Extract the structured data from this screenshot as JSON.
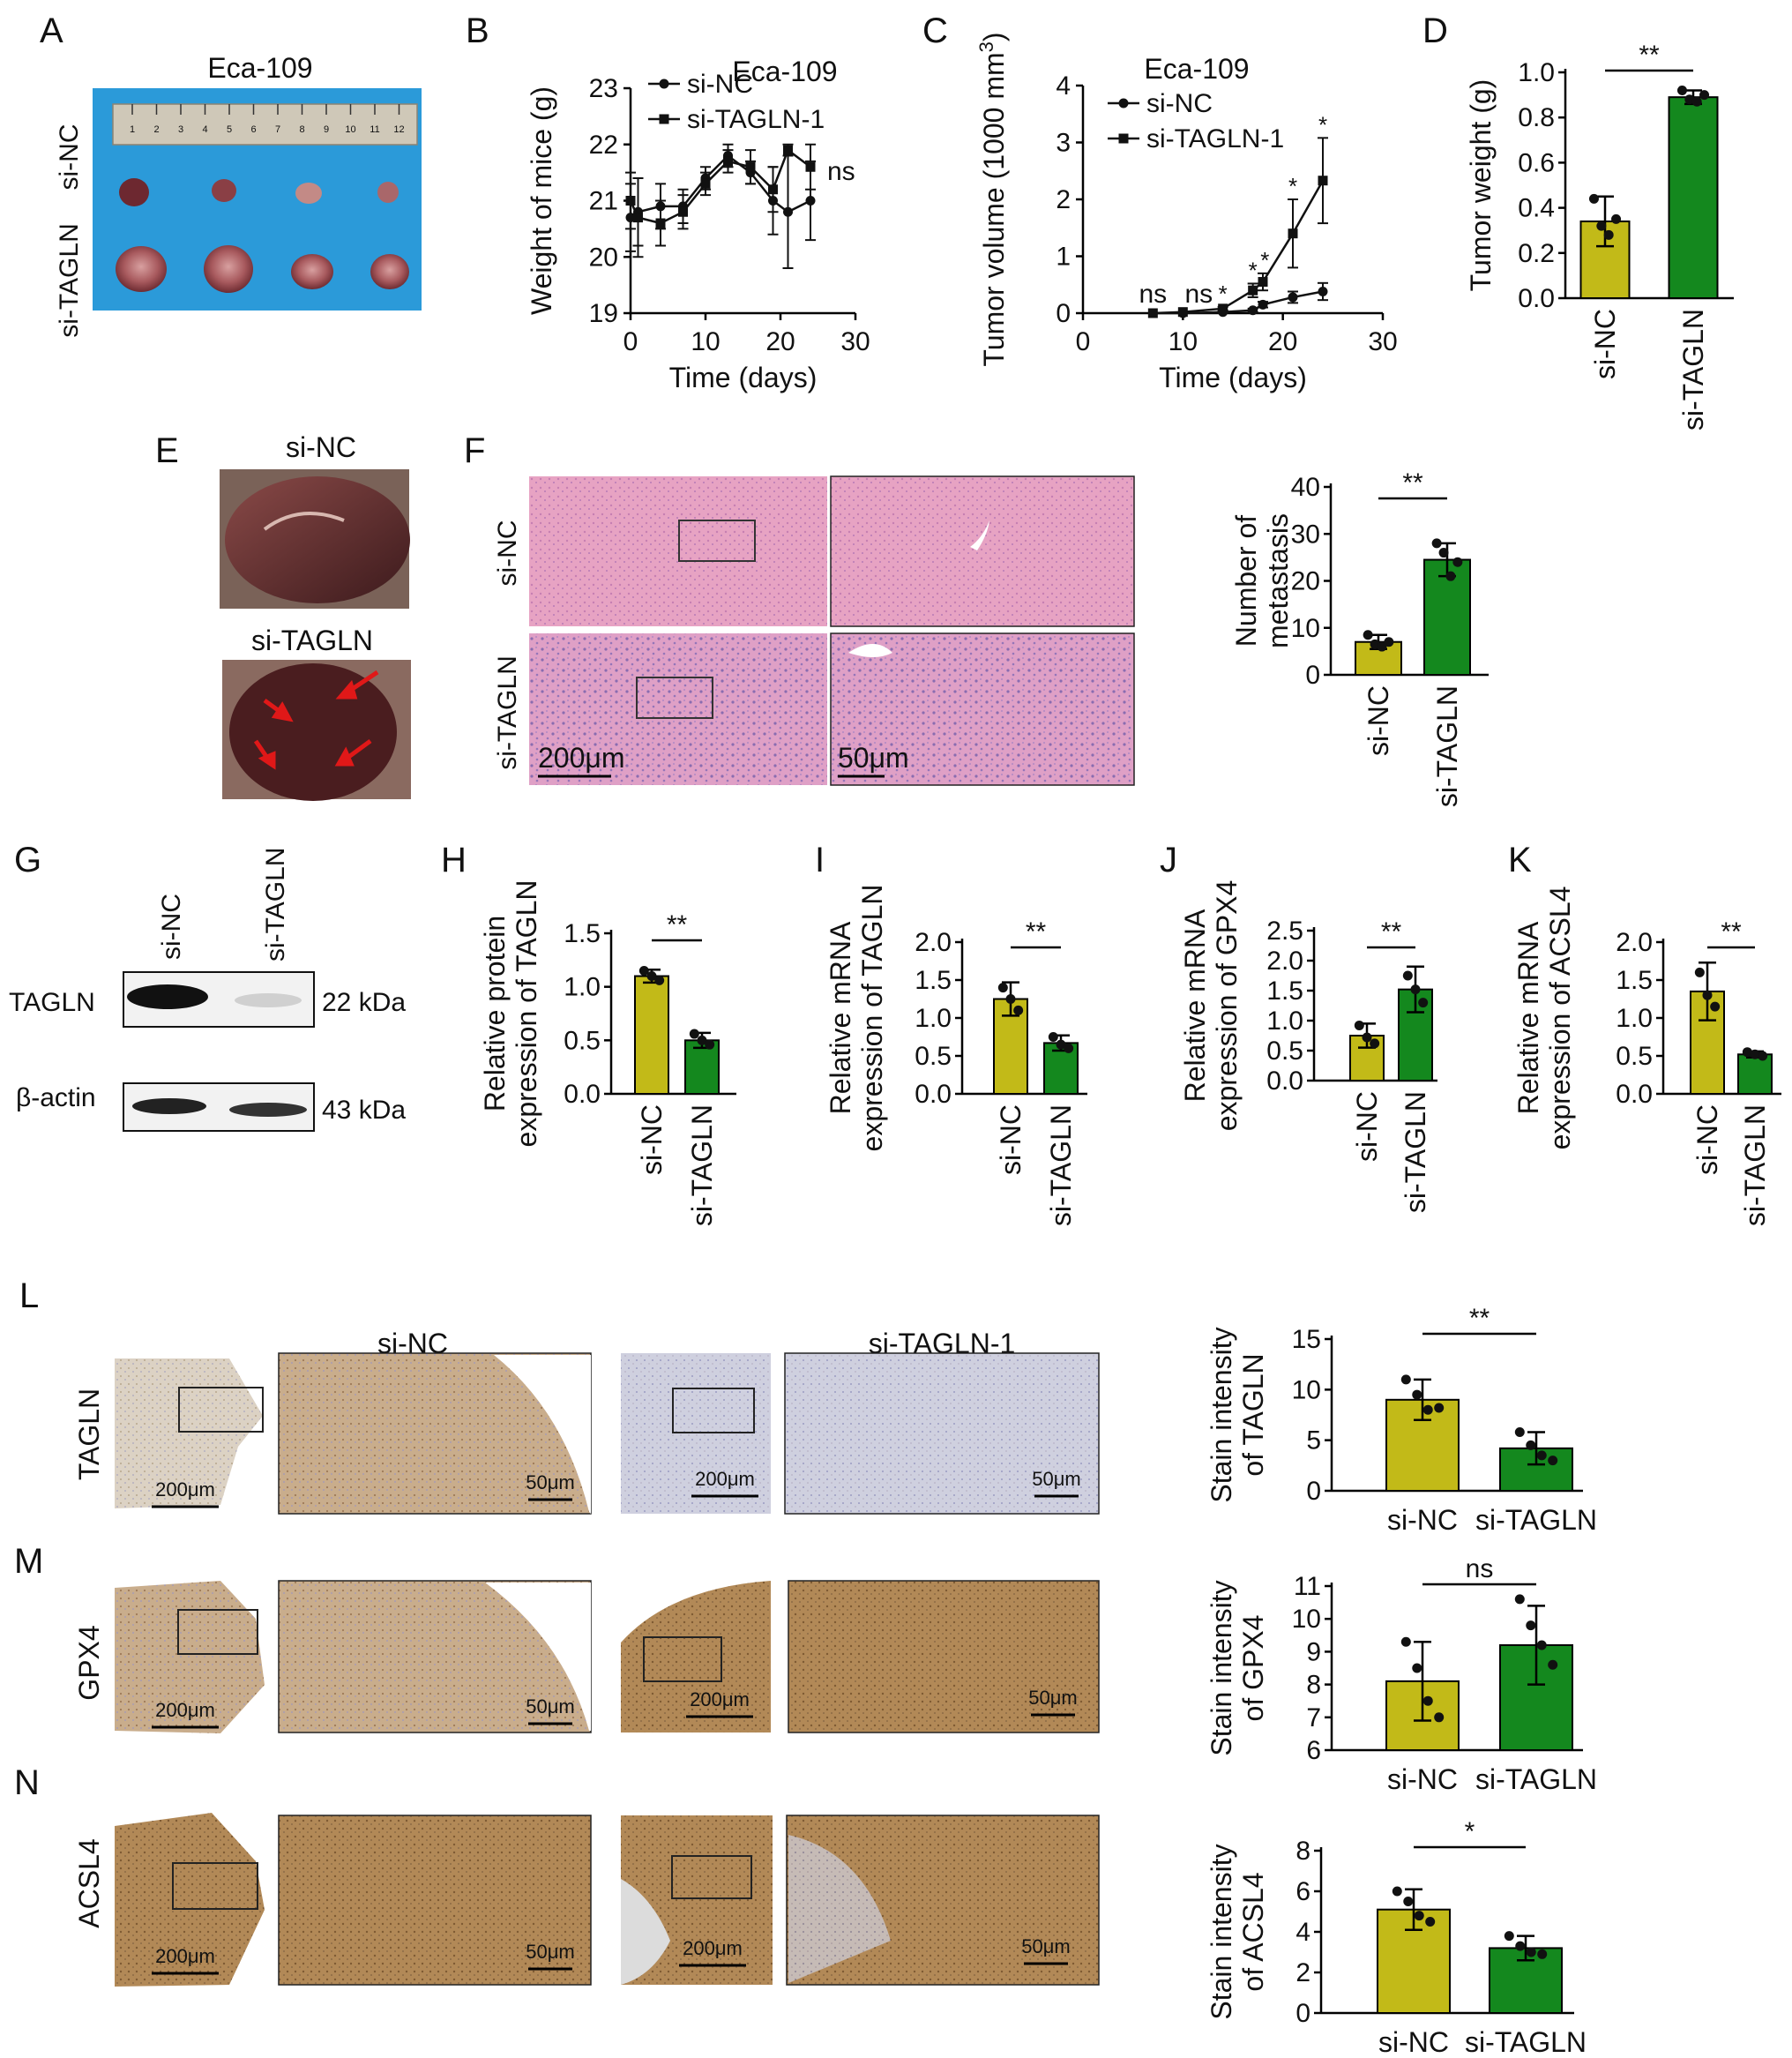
{
  "figure": {
    "panel_letters": [
      "A",
      "B",
      "C",
      "D",
      "E",
      "F",
      "G",
      "H",
      "I",
      "J",
      "K",
      "L",
      "M",
      "N"
    ]
  },
  "colors": {
    "nc": "#c2ba18",
    "kd": "#14881e",
    "axis": "#000000"
  },
  "panel_a": {
    "title": "Eca-109",
    "row_labels": [
      "si-NC",
      "si-TAGLN"
    ],
    "ruler_ticks": [
      "1",
      "2",
      "3",
      "4",
      "5",
      "6",
      "7",
      "8",
      "9",
      "10",
      "11",
      "12"
    ]
  },
  "panel_e": {
    "labels": [
      "si-NC",
      "si-TAGLN"
    ]
  },
  "panel_f": {
    "row_labels": [
      "si-NC",
      "si-TAGLN"
    ],
    "scale_left": "200μm",
    "scale_right": "50μm"
  },
  "panel_g": {
    "lanes": [
      "si-NC",
      "si-TAGLN"
    ],
    "rows": [
      {
        "label": "TAGLN",
        "size": "22 kDa"
      },
      {
        "label": "β-actin",
        "size": "43 kDa"
      }
    ]
  },
  "ihc": {
    "group_headers": [
      "si-NC",
      "si-TAGLN-1"
    ],
    "rows": [
      {
        "label": "TAGLN",
        "letter": "L"
      },
      {
        "label": "GPX4",
        "letter": "M"
      },
      {
        "label": "ACSL4",
        "letter": "N"
      }
    ],
    "scale_big": "200μm",
    "scale_small": "50μm"
  },
  "chart_data": [
    {
      "id": "B",
      "type": "line",
      "title": "Eca-109",
      "xlabel": "Time (days)",
      "ylabel": "Weight of mice (g)",
      "xlim": [
        0,
        30
      ],
      "ylim": [
        19,
        23
      ],
      "xticks": [
        0,
        10,
        20,
        30
      ],
      "yticks": [
        19,
        20,
        21,
        22,
        23
      ],
      "series": [
        {
          "name": "si-NC",
          "marker": "circle",
          "x": [
            0,
            1,
            4,
            7,
            10,
            13,
            16,
            19,
            21,
            24
          ],
          "y": [
            20.7,
            20.8,
            20.9,
            20.9,
            21.4,
            21.8,
            21.5,
            21.0,
            20.8,
            21.0
          ],
          "err": [
            0.6,
            0.6,
            0.4,
            0.3,
            0.2,
            0.2,
            0.2,
            0.6,
            1.0,
            0.7
          ]
        },
        {
          "name": "si-TAGLN-1",
          "marker": "square",
          "x": [
            0,
            1,
            4,
            7,
            10,
            13,
            16,
            19,
            21,
            24
          ],
          "y": [
            21.0,
            20.7,
            20.6,
            20.8,
            21.3,
            21.7,
            21.6,
            21.2,
            21.9,
            21.6
          ],
          "err": [
            0.5,
            0.7,
            0.4,
            0.3,
            0.2,
            0.2,
            0.3,
            0.4,
            0.1,
            0.4
          ]
        }
      ],
      "annotations": [
        "ns"
      ]
    },
    {
      "id": "C",
      "type": "line",
      "title": "Eca-109",
      "xlabel": "Time (days)",
      "ylabel_prefix": "Tumor volume (1000 mm",
      "ylabel_sup": "3",
      "ylabel_suffix": ")",
      "xlim": [
        0,
        30
      ],
      "ylim": [
        0,
        4
      ],
      "xticks": [
        0,
        10,
        20,
        30
      ],
      "yticks": [
        0,
        1,
        2,
        3,
        4
      ],
      "series": [
        {
          "name": "si-NC",
          "marker": "circle",
          "x": [
            7,
            10,
            14,
            17,
            18,
            21,
            24
          ],
          "y": [
            0.0,
            0.0,
            0.02,
            0.05,
            0.15,
            0.28,
            0.38
          ],
          "err": [
            0,
            0,
            0.01,
            0.03,
            0.05,
            0.1,
            0.15
          ]
        },
        {
          "name": "si-TAGLN-1",
          "marker": "square",
          "x": [
            7,
            10,
            14,
            17,
            18,
            21,
            24
          ],
          "y": [
            0.0,
            0.02,
            0.08,
            0.4,
            0.55,
            1.4,
            2.33
          ],
          "err": [
            0,
            0,
            0.03,
            0.12,
            0.15,
            0.6,
            0.75
          ]
        }
      ],
      "annotations": [
        "ns",
        "ns",
        "*",
        "*",
        "*",
        "*",
        "*"
      ]
    },
    {
      "id": "D",
      "type": "bar",
      "ylabel": "Tumor weight (g)",
      "categories": [
        "si-NC",
        "si-TAGLN"
      ],
      "values": [
        0.34,
        0.89
      ],
      "err": [
        0.11,
        0.03
      ],
      "points": [
        [
          0.44,
          0.32,
          0.28,
          0.35
        ],
        [
          0.92,
          0.88,
          0.87,
          0.9
        ]
      ],
      "ylim": [
        0,
        1.0
      ],
      "yticks": [
        "0.0",
        "0.2",
        "0.4",
        "0.6",
        "0.8",
        "1.0"
      ],
      "sig": "**"
    },
    {
      "id": "F",
      "type": "bar",
      "ylabel_lines": [
        "Number of",
        "metastasis"
      ],
      "categories": [
        "si-NC",
        "si-TAGLN"
      ],
      "values": [
        7,
        24.5
      ],
      "err": [
        1.5,
        3.5
      ],
      "points": [
        [
          8.5,
          6.5,
          6,
          7
        ],
        [
          28,
          26,
          21,
          24
        ]
      ],
      "ylim": [
        0,
        40
      ],
      "yticks": [
        "0",
        "10",
        "20",
        "30",
        "40"
      ],
      "sig": "**"
    },
    {
      "id": "H",
      "type": "bar",
      "ylabel_lines": [
        "Relative protein",
        "expression of TAGLN"
      ],
      "categories": [
        "si-NC",
        "si-TAGLN"
      ],
      "values": [
        1.1,
        0.5
      ],
      "err": [
        0.06,
        0.07
      ],
      "points": [
        [
          1.15,
          1.1,
          1.06
        ],
        [
          0.56,
          0.5,
          0.46
        ]
      ],
      "ylim": [
        0,
        1.5
      ],
      "yticks": [
        "0.0",
        "0.5",
        "1.0",
        "1.5"
      ],
      "sig": "**"
    },
    {
      "id": "I",
      "type": "bar",
      "ylabel_lines": [
        "Relative mRNA",
        "expression of TAGLN"
      ],
      "categories": [
        "si-NC",
        "si-TAGLN"
      ],
      "values": [
        1.25,
        0.67
      ],
      "err": [
        0.22,
        0.1
      ],
      "points": [
        [
          1.4,
          1.25,
          1.1
        ],
        [
          0.75,
          0.65,
          0.6
        ]
      ],
      "ylim": [
        0,
        2.0
      ],
      "yticks": [
        "0.0",
        "0.5",
        "1.0",
        "1.5",
        "2.0"
      ],
      "sig": "**"
    },
    {
      "id": "J",
      "type": "bar",
      "ylabel_lines": [
        "Relative mRNA",
        "expression of GPX4"
      ],
      "categories": [
        "si-NC",
        "si-TAGLN"
      ],
      "values": [
        0.75,
        1.52
      ],
      "err": [
        0.2,
        0.38
      ],
      "points": [
        [
          0.92,
          0.72,
          0.62
        ],
        [
          1.75,
          1.52,
          1.3
        ]
      ],
      "ylim": [
        0,
        2.5
      ],
      "yticks": [
        "0.0",
        "0.5",
        "1.0",
        "1.5",
        "2.0",
        "2.5"
      ],
      "sig": "**"
    },
    {
      "id": "K",
      "type": "bar",
      "ylabel_lines": [
        "Relative mRNA",
        "expression of ACSL4"
      ],
      "categories": [
        "si-NC",
        "si-TAGLN"
      ],
      "values": [
        1.35,
        0.52
      ],
      "err": [
        0.38,
        0.04
      ],
      "points": [
        [
          1.6,
          1.3,
          1.15
        ],
        [
          0.55,
          0.52,
          0.5
        ]
      ],
      "ylim": [
        0,
        2.0
      ],
      "yticks": [
        "0.0",
        "0.5",
        "1.0",
        "1.5",
        "2.0"
      ],
      "sig": "**"
    },
    {
      "id": "L",
      "type": "bar",
      "ylabel_lines": [
        "Stain intensity",
        "of TAGLN"
      ],
      "categories": [
        "si-NC",
        "si-TAGLN"
      ],
      "values": [
        9.0,
        4.2
      ],
      "err": [
        2.0,
        1.6
      ],
      "points": [
        [
          11,
          9.5,
          8,
          8.2
        ],
        [
          5.8,
          4.5,
          3.5,
          3
        ]
      ],
      "ylim": [
        0,
        15
      ],
      "yticks": [
        "0",
        "5",
        "10",
        "15"
      ],
      "sig": "**"
    },
    {
      "id": "M",
      "type": "bar",
      "ylabel_lines": [
        "Stain intensity",
        "of GPX4"
      ],
      "categories": [
        "si-NC",
        "si-TAGLN"
      ],
      "values": [
        8.1,
        9.2
      ],
      "err": [
        1.2,
        1.2
      ],
      "points": [
        [
          9.3,
          8.5,
          7.5,
          7.0
        ],
        [
          10.6,
          9.8,
          9.2,
          8.6
        ]
      ],
      "ylim": [
        6,
        11
      ],
      "yticks": [
        "6",
        "7",
        "8",
        "9",
        "10",
        "11"
      ],
      "sig": "ns"
    },
    {
      "id": "N",
      "type": "bar",
      "ylabel_lines": [
        "Stain intensity",
        "of ACSL4"
      ],
      "categories": [
        "si-NC",
        "si-TAGLN"
      ],
      "values": [
        5.1,
        3.2
      ],
      "err": [
        1.0,
        0.6
      ],
      "points": [
        [
          6.0,
          5.5,
          4.8,
          4.5
        ],
        [
          3.8,
          3.3,
          3.0,
          2.9
        ]
      ],
      "ylim": [
        0,
        8
      ],
      "yticks": [
        "0",
        "2",
        "4",
        "6",
        "8"
      ],
      "sig": "*"
    }
  ]
}
